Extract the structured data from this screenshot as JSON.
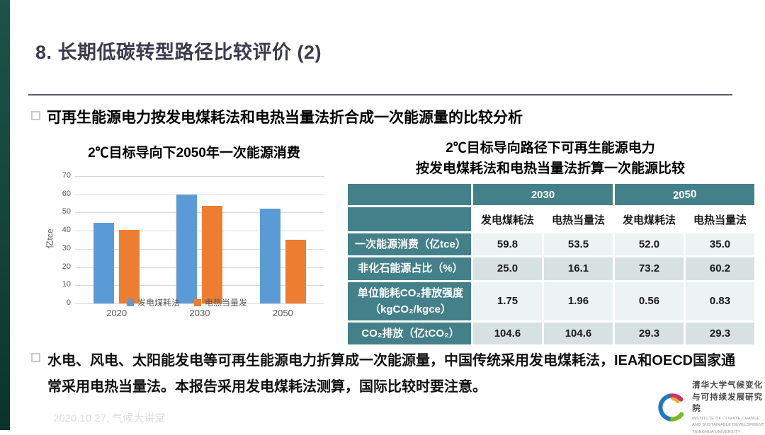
{
  "slide": {
    "title": "8. 长期低碳转型路径比较评价 (2)",
    "section_heading": "可再生能源电力按发电煤耗法和电热当量法折合成一次能源量的比较分析",
    "bottom_note": "水电、风电、太阳能发电等可再生能源电力折算成一次能源量，中国传统采用发电煤耗法，IEA和OECD国家通常采用电热当量法。本报告采用发电煤耗法测算，国际比较时要注意。",
    "footer": "2020.10.27, 气候大讲堂"
  },
  "chart_data": {
    "type": "bar",
    "title": "2℃目标导向下2050年一次能源消费",
    "xlabel": "",
    "ylabel": "亿tce",
    "ylim": [
      0,
      70
    ],
    "ytick_step": 10,
    "grid": true,
    "legend_position": "bottom",
    "categories": [
      "2020",
      "2030",
      "2050"
    ],
    "series": [
      {
        "name": "发电煤耗法",
        "color": "#5B9BD5",
        "values": [
          44.4,
          59.8,
          52.0
        ]
      },
      {
        "name": "电热当量发",
        "color": "#ED7D31",
        "values": [
          40.6,
          53.5,
          35.0
        ]
      }
    ]
  },
  "table": {
    "title_line1": "2℃目标导向路径下可再生能源电力",
    "title_line2": "按发电煤耗法和电热当量法折算一次能源比较",
    "year_headers": [
      "2030",
      "2050"
    ],
    "method_headers": [
      "发电煤耗法",
      "电热当量法",
      "发电煤耗法",
      "电热当量法"
    ],
    "rows": [
      {
        "label": "一次能源消费（亿tce）",
        "values": [
          "59.8",
          "53.5",
          "52.0",
          "35.0"
        ]
      },
      {
        "label": "非化石能源占比（%）",
        "values": [
          "25.0",
          "16.1",
          "73.2",
          "60.2"
        ]
      },
      {
        "label": "单位能耗CO₂排放强度\n（kgCO₂/kgce）",
        "values": [
          "1.75",
          "1.96",
          "0.56",
          "0.83"
        ]
      },
      {
        "label": "CO₂排放（亿tCO₂）",
        "values": [
          "104.6",
          "104.6",
          "29.3",
          "29.3"
        ]
      }
    ],
    "header_bg": "#44808A",
    "band_light": "#EDF2F2",
    "band_dark": "#D8E1E1"
  },
  "logo": {
    "cn_line1": "清华大学气候变化",
    "cn_line2": "与可持续发展研究院",
    "en_line1": "INSTITUTE OF CLIMATE CHANGE",
    "en_line2": "AND SUSTAINABLE DEVELOPMENT",
    "en_line3": "TSINGHUA UNIVERSITY"
  },
  "colors": {
    "left_strip_top": "#1D5348",
    "left_strip_bottom": "#0B332B",
    "title_text": "#3B3B4D",
    "rule": "#5A5A6E",
    "gridline": "#D9D9D9",
    "axis_text": "#595959"
  }
}
